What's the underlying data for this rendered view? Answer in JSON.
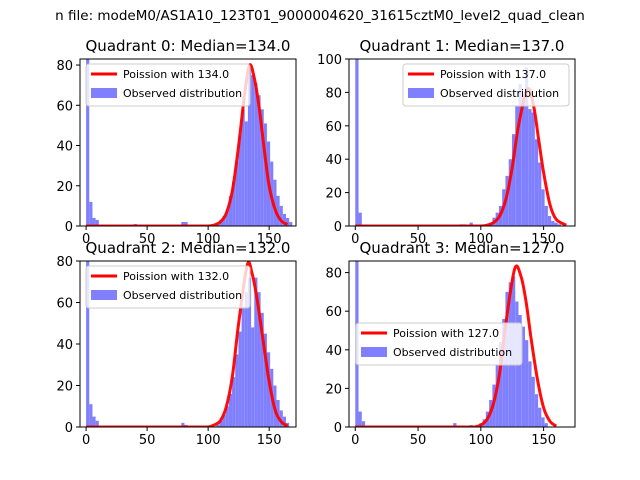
{
  "figure": {
    "suptitle": "n file: modeM0/AS1A10_123T01_9000004620_31615cztM0_level2_quad_clean"
  },
  "colors": {
    "model_line": "#ff0000",
    "observed_bars": "#8080ff",
    "axes": "#000000",
    "background": "#ffffff"
  },
  "chart_data": [
    {
      "type": "bar",
      "title": "Quadrant 0: Median=134.0",
      "xlim": [
        -5,
        172
      ],
      "ylim": [
        0,
        83
      ],
      "xticks": [
        0,
        50,
        100,
        150
      ],
      "yticks": [
        0,
        20,
        40,
        60,
        80
      ],
      "legend": {
        "placement": "upper-left",
        "line_label": "Poission with 134.0",
        "bar_label": "Observed distribution"
      },
      "bin_width": 2.6,
      "hist_x": [
        0,
        2.6,
        5.2,
        7.8,
        39,
        78,
        80.6,
        106.6,
        109.2,
        111.8,
        114.4,
        117,
        119.6,
        122.2,
        124.8,
        127.4,
        130,
        132.6,
        135.2,
        137.8,
        140.4,
        143,
        145.6,
        148.2,
        150.8,
        153.4,
        156,
        158.6,
        161.2,
        163.8,
        166.4
      ],
      "hist_y": [
        83,
        12,
        4,
        3,
        1,
        2,
        2,
        1,
        3,
        5,
        8,
        15,
        22,
        32,
        45,
        58,
        52,
        80,
        75,
        71,
        65,
        58,
        51,
        42,
        32,
        23,
        15,
        10,
        6,
        4,
        2
      ],
      "poisson_x": [
        100,
        105,
        110,
        115,
        120,
        125,
        130,
        134,
        138,
        142,
        146,
        150,
        155,
        160,
        165
      ],
      "poisson_y": [
        0,
        0.5,
        2,
        6.5,
        18,
        40,
        66,
        80,
        73,
        58,
        38,
        20,
        8,
        2.5,
        0.8
      ]
    },
    {
      "type": "bar",
      "title": "Quadrant 1: Median=137.0",
      "xlim": [
        -5,
        175
      ],
      "ylim": [
        0,
        100
      ],
      "xticks": [
        0,
        50,
        100,
        150
      ],
      "yticks": [
        0,
        20,
        40,
        60,
        80,
        100
      ],
      "legend": {
        "placement": "upper-right",
        "line_label": "Poission with 137.0",
        "bar_label": "Observed distribution"
      },
      "bin_width": 2.6,
      "hist_x": [
        0,
        2.6,
        83,
        85.6,
        91,
        106.6,
        109.2,
        111.8,
        114.4,
        117,
        119.6,
        122.2,
        124.8,
        127.4,
        130,
        132.6,
        135.2,
        137.8,
        140.4,
        143,
        145.6,
        148.2,
        150.8,
        153.4,
        156,
        158.6,
        161.2
      ],
      "hist_y": [
        100,
        8,
        1,
        1,
        2,
        2,
        5,
        8,
        12,
        22,
        30,
        40,
        55,
        72,
        85,
        78,
        95,
        70,
        68,
        52,
        38,
        22,
        12,
        6,
        3,
        2,
        1
      ],
      "poisson_x": [
        100,
        105,
        110,
        115,
        120,
        125,
        130,
        137,
        142,
        146,
        150,
        155,
        160,
        168
      ],
      "poisson_y": [
        0,
        0.5,
        2,
        6,
        16,
        35,
        60,
        82,
        72,
        52,
        32,
        13,
        4,
        0.5
      ]
    },
    {
      "type": "bar",
      "title": "Quadrant 2: Median=132.0",
      "xlim": [
        -5,
        172
      ],
      "ylim": [
        0,
        80
      ],
      "xticks": [
        0,
        50,
        100,
        150
      ],
      "yticks": [
        0,
        20,
        40,
        60,
        80
      ],
      "legend": {
        "placement": "upper-left",
        "line_label": "Poission with 132.0",
        "bar_label": "Observed distribution"
      },
      "bin_width": 2.6,
      "hist_x": [
        0,
        2.6,
        5.2,
        7.8,
        78,
        80.6,
        106.6,
        109.2,
        111.8,
        114.4,
        117,
        119.6,
        122.2,
        124.8,
        127.4,
        130,
        132.6,
        135.2,
        137.8,
        140.4,
        143,
        145.6,
        148.2,
        150.8,
        153.4,
        156,
        158.6,
        161.2,
        163.8
      ],
      "hist_y": [
        80,
        11,
        5,
        3,
        2,
        1,
        1,
        3,
        6,
        10,
        16,
        24,
        35,
        46,
        58,
        65,
        72,
        48,
        72,
        65,
        55,
        45,
        36,
        28,
        20,
        13,
        8,
        5,
        2
      ],
      "poisson_x": [
        100,
        105,
        110,
        115,
        120,
        125,
        132,
        136,
        140,
        145,
        150,
        155,
        160,
        165
      ],
      "poisson_y": [
        0,
        1,
        3,
        10,
        25,
        50,
        78,
        74,
        62,
        42,
        22,
        8,
        2.5,
        0.5
      ]
    },
    {
      "type": "bar",
      "title": "Quadrant 3: Median=127.0",
      "xlim": [
        -5,
        175
      ],
      "ylim": [
        0,
        86
      ],
      "xticks": [
        0,
        50,
        100,
        150
      ],
      "yticks": [
        0,
        20,
        40,
        60,
        80
      ],
      "legend": {
        "placement": "center-left",
        "line_label": "Poission with 127.0",
        "bar_label": "Observed distribution"
      },
      "bin_width": 2.6,
      "hist_x": [
        0,
        2.6,
        5.2,
        78,
        91,
        98.8,
        101.4,
        104,
        106.6,
        109.2,
        111.8,
        114.4,
        117,
        119.6,
        122.2,
        124.8,
        127.4,
        130,
        132.6,
        135.2,
        137.8,
        140.4,
        143,
        145.6,
        148.2,
        150.8
      ],
      "hist_y": [
        86,
        8,
        3,
        2,
        1,
        2,
        4,
        8,
        14,
        22,
        32,
        44,
        56,
        70,
        75,
        78,
        65,
        58,
        52,
        45,
        34,
        26,
        17,
        10,
        5,
        2
      ],
      "poisson_x": [
        95,
        100,
        105,
        110,
        115,
        120,
        127,
        132,
        136,
        140,
        145,
        150,
        155,
        160
      ],
      "poisson_y": [
        0,
        1,
        4,
        12,
        28,
        54,
        82,
        78,
        65,
        46,
        25,
        10,
        3,
        0.5
      ]
    }
  ]
}
